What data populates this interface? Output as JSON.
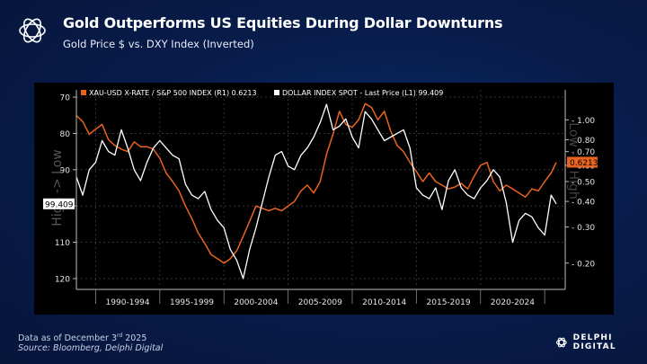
{
  "header": {
    "title": "Gold Outperforms US Equities During Dollar Downturns",
    "subtitle": "Gold Price $ vs. DXY Index (Inverted)"
  },
  "footer": {
    "date_prefix": "Data as of December 3",
    "date_sup": "rd",
    "date_year": " 2025",
    "source": "Source: Bloomberg, Delphi Digital"
  },
  "brand": {
    "name": "DELPHI DIGITAL",
    "icon": "delphi-logo-icon"
  },
  "colors": {
    "gold_series": "#e8641e",
    "dxy_series": "#ffffff",
    "panel_bg": "#000000",
    "background": "#081d4d"
  },
  "chart_data": {
    "type": "line",
    "title": "Gold Outperforms US Equities During Dollar Downturns",
    "subtitle": "Gold Price $ vs. DXY Index (Inverted)",
    "left_axis_label": "High -> Low",
    "right_axis_label": "Low -> High",
    "left_axis": {
      "inverted": true,
      "range": [
        68,
        122
      ],
      "ticks": [
        70,
        80,
        90,
        100,
        110,
        120
      ]
    },
    "right_axis": {
      "scale": "log",
      "range": [
        0.155,
        1.4
      ],
      "ticks": [
        "1.00",
        "0.80",
        "0.70",
        "0.60",
        "0.50",
        "0.40",
        "0.30",
        "0.20"
      ]
    },
    "x_range": [
      1988.5,
      2026.6
    ],
    "x_tick_labels": [
      "1990-1994",
      "1995-1999",
      "2000-2004",
      "2005-2009",
      "2010-2014",
      "2015-2019",
      "2020-2024"
    ],
    "current_labels": {
      "gold": "0.6213",
      "dxy": "99.409"
    },
    "grid": true,
    "series": [
      {
        "name": "XAU-USD X-RATE / S&P 500 INDEX (R1) 0.6213",
        "axis": "right",
        "x": [
          1988.5,
          1989,
          1989.5,
          1990,
          1990.5,
          1991,
          1991.5,
          1992,
          1992.5,
          1993,
          1993.5,
          1994,
          1994.5,
          1995,
          1995.5,
          1996,
          1996.5,
          1997,
          1997.5,
          1998,
          1998.5,
          1999,
          1999.5,
          2000,
          2000.5,
          2001,
          2001.5,
          2002,
          2002.5,
          2003,
          2003.5,
          2004,
          2004.5,
          2005,
          2005.5,
          2006,
          2006.5,
          2007,
          2007.5,
          2008,
          2008.5,
          2009,
          2009.5,
          2010,
          2010.5,
          2011,
          2011.5,
          2012,
          2012.5,
          2013,
          2013.5,
          2014,
          2014.5,
          2015,
          2015.5,
          2016,
          2016.5,
          2017,
          2017.5,
          2018,
          2018.5,
          2019,
          2019.5,
          2020,
          2020.5,
          2021,
          2021.5,
          2022,
          2022.5,
          2023,
          2023.5,
          2024,
          2024.5,
          2025,
          2025.5,
          2025.9
        ],
        "values": [
          1.05,
          0.98,
          0.85,
          0.9,
          0.95,
          0.8,
          0.75,
          0.72,
          0.7,
          0.78,
          0.74,
          0.74,
          0.72,
          0.65,
          0.55,
          0.5,
          0.45,
          0.38,
          0.33,
          0.28,
          0.25,
          0.22,
          0.21,
          0.2,
          0.21,
          0.23,
          0.27,
          0.32,
          0.38,
          0.37,
          0.36,
          0.37,
          0.36,
          0.38,
          0.4,
          0.45,
          0.48,
          0.44,
          0.5,
          0.68,
          0.85,
          1.1,
          0.95,
          0.92,
          1.0,
          1.2,
          1.15,
          1.0,
          1.1,
          0.88,
          0.75,
          0.7,
          0.62,
          0.56,
          0.5,
          0.55,
          0.5,
          0.48,
          0.46,
          0.47,
          0.49,
          0.46,
          0.53,
          0.6,
          0.62,
          0.5,
          0.45,
          0.48,
          0.46,
          0.44,
          0.42,
          0.46,
          0.45,
          0.5,
          0.55,
          0.62
        ]
      },
      {
        "name": "DOLLAR INDEX SPOT - Last Price (L1) 99.409",
        "axis": "left",
        "x": [
          1988.5,
          1989,
          1989.5,
          1990,
          1990.5,
          1991,
          1991.5,
          1992,
          1992.5,
          1993,
          1993.5,
          1994,
          1994.5,
          1995,
          1995.5,
          1996,
          1996.5,
          1997,
          1997.5,
          1998,
          1998.5,
          1999,
          1999.5,
          2000,
          2000.5,
          2001,
          2001.5,
          2002,
          2002.5,
          2003,
          2003.5,
          2004,
          2004.5,
          2005,
          2005.5,
          2006,
          2006.5,
          2007,
          2007.5,
          2008,
          2008.5,
          2009,
          2009.5,
          2010,
          2010.5,
          2011,
          2011.5,
          2012,
          2012.5,
          2013,
          2013.5,
          2014,
          2014.5,
          2015,
          2015.5,
          2016,
          2016.5,
          2017,
          2017.5,
          2018,
          2018.5,
          2019,
          2019.5,
          2020,
          2020.5,
          2021,
          2021.5,
          2022,
          2022.5,
          2023,
          2023.5,
          2024,
          2024.5,
          2025,
          2025.5,
          2025.9
        ],
        "values": [
          92,
          97,
          90,
          88,
          82,
          85,
          86,
          79,
          84,
          90,
          93,
          88,
          84,
          82,
          84,
          86,
          87,
          94,
          97,
          98,
          96,
          101,
          104,
          106,
          112,
          115,
          120,
          112,
          106,
          99,
          92,
          86,
          85,
          89,
          90,
          86,
          84,
          81,
          77,
          72,
          79,
          78,
          76,
          81,
          84,
          74,
          76,
          79,
          82,
          81,
          80,
          79,
          84,
          95,
          97,
          98,
          95,
          101,
          93,
          90,
          95,
          97,
          98,
          95,
          93,
          90,
          92,
          99,
          110,
          104,
          102,
          103,
          106,
          108,
          97,
          99.4
        ]
      }
    ]
  }
}
